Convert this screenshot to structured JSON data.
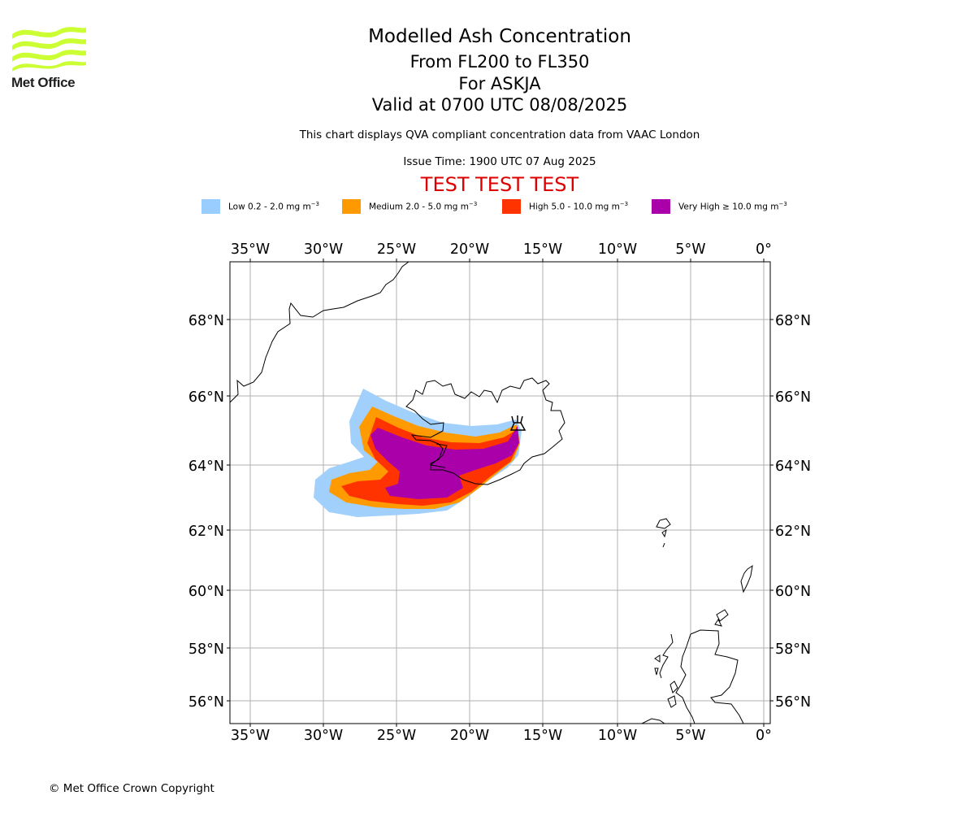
{
  "header": {
    "title": "Modelled Ash Concentration",
    "levels": "From FL200 to FL350",
    "volcano": "For ASKJA",
    "valid": "Valid at 0700 UTC 08/08/2025",
    "description": "This chart displays QVA compliant concentration data from VAAC London",
    "issue_time": "Issue Time: 1900 UTC 07 Aug 2025",
    "test_banner": "TEST TEST TEST"
  },
  "logo": {
    "text": "Met Office",
    "color": "#ccff33"
  },
  "legend": [
    {
      "label": "Low 0.2 - 2.0 mg m",
      "color": "#99ccff"
    },
    {
      "label": "Medium 2.0 - 5.0 mg m",
      "color": "#ff9900"
    },
    {
      "label": "High 5.0 - 10.0 mg m",
      "color": "#ff3300"
    },
    {
      "label": "Very High  ≥  10.0 mg m",
      "color": "#aa00aa"
    }
  ],
  "legend_unit_exponent": "−3",
  "map": {
    "lon_ticks": [
      "35°W",
      "30°W",
      "25°W",
      "20°W",
      "15°W",
      "10°W",
      "5°W",
      "0°"
    ],
    "lat_ticks": [
      "68°N",
      "66°N",
      "64°N",
      "62°N",
      "60°N",
      "58°N",
      "56°N"
    ],
    "features": [
      "Greenland coast",
      "Iceland",
      "Faroe Islands",
      "Shetland",
      "Scotland",
      "Outer Hebrides"
    ],
    "volcano_marker": "volcano-icon"
  },
  "footer": {
    "copyright": "© Met Office Crown Copyright"
  }
}
